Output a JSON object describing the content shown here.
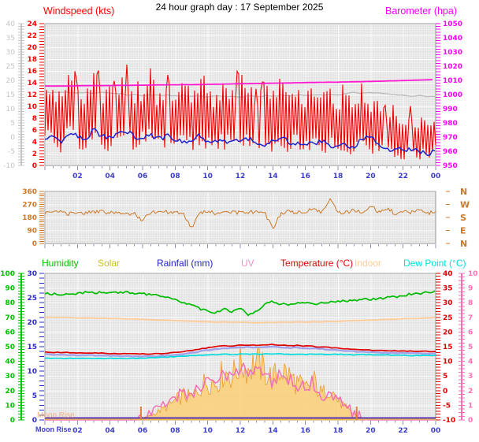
{
  "title": "24 hour graph day : 17 September 2025",
  "top_panel": {
    "left_axis_title": "Windspeed (kts)",
    "right_axis_title": "Barometer (hpa)"
  },
  "middle_panel": {
    "compass_labels": [
      "N",
      "W",
      "S",
      "E",
      "N"
    ]
  },
  "legend": {
    "items": [
      {
        "label": "Humidity",
        "color": "#00c000"
      },
      {
        "label": "Solar",
        "color": "#c8c020"
      },
      {
        "label": "Rainfall (mm)",
        "color": "#2222cc"
      },
      {
        "label": "UV",
        "color": "#ff8cc6"
      },
      {
        "label": "Temperature (°C)",
        "color": "#e00000"
      },
      {
        "label": "Indoor",
        "color": "#ffcc99"
      },
      {
        "label": "Dew Point (°C)",
        "color": "#00e0e0"
      }
    ]
  },
  "time_axis": {
    "moon_label": "Moon Rise",
    "hours": [
      2,
      4,
      6,
      8,
      10,
      12,
      14,
      16,
      18,
      20,
      22,
      24
    ],
    "labels": [
      "02",
      "04",
      "06",
      "08",
      "10",
      "12",
      "14",
      "16",
      "18",
      "20",
      "22",
      "00"
    ]
  },
  "bottom_panel": {
    "moon_overlay": "Moon Rise"
  },
  "chart_data": [
    {
      "id": "wind-barometer",
      "type": "line",
      "x_unit": "hours",
      "x_start": 0,
      "x_step": 0.5,
      "x_count": 49,
      "axes": [
        {
          "id": "windspeed",
          "slot": "left1",
          "color": "#ff0000",
          "min": 0,
          "max": 24,
          "tick": 0.5,
          "label": 2
        },
        {
          "id": "outer-gray",
          "slot": "left2",
          "color": "#c4c4c4",
          "min": -10,
          "max": 40,
          "tick": 1,
          "label": 5
        },
        {
          "id": "barometer",
          "slot": "right1",
          "color": "#ff00ff",
          "min": 950,
          "max": 1050,
          "tick": 2,
          "label": 10
        }
      ],
      "series": [
        {
          "name": "pressure_secondary",
          "axis": "barometer",
          "color": "#bcbcbc",
          "values": [
            1001.5,
            1001.5,
            1001.3,
            1001.5,
            1001.2,
            1001.4,
            1001,
            1001.2,
            1000.8,
            1001,
            999.8,
            1000,
            999.5,
            999.8,
            999.3,
            999.6,
            999,
            999.4,
            998.8,
            999.2,
            998.6,
            999,
            998.5,
            998.9,
            998.4,
            999,
            998.5,
            999.2,
            998.7,
            999.4,
            999,
            999.8,
            999.3,
            1000,
            999.6,
            1000.3,
            999.9,
            1000.6,
            1001.4,
            1000.8,
            1001.6,
            1001,
            1000.4,
            999.8,
            999.4,
            999,
            999.2,
            998.9,
            998.7
          ]
        },
        {
          "name": "wind_gust_hi",
          "axis": "windspeed",
          "color": "#f20000",
          "values": [
            13,
            15,
            12,
            16,
            14,
            12,
            17,
            13,
            15,
            12,
            16,
            13,
            14,
            17,
            12,
            15,
            13,
            16,
            12,
            17,
            14,
            12,
            16,
            13,
            17,
            14,
            12,
            15,
            13,
            16,
            12,
            14,
            13,
            15,
            12,
            14,
            11,
            13,
            12,
            14,
            10,
            12,
            9,
            11,
            8,
            9,
            8,
            9,
            8
          ]
        },
        {
          "name": "wind_gust_lo",
          "axis": "windspeed",
          "color": "#f20000",
          "values": [
            3,
            4,
            2,
            5,
            3,
            2,
            4,
            3,
            2,
            4,
            3,
            2,
            4,
            3,
            2,
            3,
            2,
            4,
            2,
            3,
            2,
            3,
            2,
            3,
            2,
            3,
            2,
            3,
            2,
            3,
            2,
            3,
            2,
            3,
            2,
            2,
            2,
            2,
            1,
            2,
            1,
            2,
            1,
            1,
            1,
            1,
            1,
            1,
            2
          ]
        },
        {
          "name": "barometer",
          "axis": "barometer",
          "color": "#ff1ad1",
          "values": [
            1006,
            1006,
            1006.1,
            1006.1,
            1006.2,
            1006.2,
            1006.3,
            1006.3,
            1006.4,
            1006.5,
            1006.5,
            1006.6,
            1006.6,
            1006.7,
            1006.8,
            1006.8,
            1006.9,
            1007,
            1007,
            1007.1,
            1007.2,
            1007.3,
            1007.4,
            1007.5,
            1007.6,
            1007.7,
            1007.8,
            1007.9,
            1008,
            1008.1,
            1008.2,
            1008.3,
            1008.4,
            1008.5,
            1008.6,
            1008.7,
            1008.8,
            1008.9,
            1009,
            1009.1,
            1009.3,
            1009.4,
            1009.6,
            1009.7,
            1009.9,
            1010,
            1010.2,
            1010.4,
            1010.5
          ]
        },
        {
          "name": "wind_avg",
          "axis": "windspeed",
          "color": "#2222cc",
          "values": [
            4.5,
            5,
            4,
            5.5,
            5,
            4.5,
            6,
            5,
            4.5,
            5.5,
            6,
            5,
            4.5,
            5,
            4.5,
            5,
            4.5,
            4,
            4.5,
            5,
            4,
            4.5,
            4,
            4.5,
            4,
            4.5,
            4,
            3.5,
            4,
            4.5,
            4,
            3.5,
            4,
            3.5,
            4,
            3.5,
            3,
            3.5,
            3,
            4.5,
            5,
            3.5,
            3,
            2.5,
            3,
            2.5,
            2.5,
            2,
            2.5
          ]
        }
      ]
    },
    {
      "id": "wind-direction",
      "type": "line",
      "x_unit": "hours",
      "x_start": 0,
      "x_step": 0.5,
      "x_count": 49,
      "axes": [
        {
          "id": "wind_direction",
          "slot": "left1",
          "color": "#cc7a29",
          "min": 0,
          "max": 360,
          "tick": 15,
          "label": 90
        }
      ],
      "compass_values": [
        360,
        270,
        180,
        90,
        0
      ],
      "series": [
        {
          "name": "wind_direction",
          "axis": "wind_direction",
          "color": "#cc7a29",
          "values": [
            215,
            210,
            220,
            205,
            215,
            210,
            215,
            220,
            210,
            215,
            205,
            210,
            160,
            215,
            210,
            220,
            215,
            210,
            105,
            215,
            220,
            210,
            215,
            225,
            210,
            215,
            220,
            215,
            95,
            210,
            220,
            215,
            210,
            250,
            215,
            300,
            220,
            215,
            230,
            210,
            260,
            220,
            240,
            210,
            230,
            215,
            225,
            210,
            220
          ]
        }
      ]
    },
    {
      "id": "climate",
      "type": "line",
      "x_unit": "hours",
      "x_start": 0,
      "x_step": 0.5,
      "x_count": 49,
      "sun_marker_hours": [
        5.9,
        19.15
      ],
      "axes": [
        {
          "id": "humidity",
          "slot": "left2",
          "color": "#00c000",
          "min": 0,
          "max": 100,
          "tick": 2,
          "label": 10
        },
        {
          "id": "rainfall",
          "slot": "left1",
          "color": "#2a2acc",
          "min": 0,
          "max": 30,
          "tick": 1,
          "label": 5
        },
        {
          "id": "temperature",
          "slot": "right1",
          "color": "#e00000",
          "min": -10,
          "max": 40,
          "tick": 1,
          "label": 5
        },
        {
          "id": "uv",
          "slot": "right2",
          "color": "#ff6eb4",
          "min": 0,
          "max": 10,
          "tick": 0.25,
          "label": 1
        }
      ],
      "series": [
        {
          "name": "solar",
          "axis": "plot_percent",
          "color": "#f9cf7a",
          "values": [
            0,
            0,
            0,
            0,
            0,
            0,
            0,
            0,
            0,
            0,
            0,
            0,
            1,
            3,
            6,
            9,
            13,
            17,
            15,
            22,
            27,
            25,
            33,
            30,
            38,
            35,
            40,
            33,
            28,
            35,
            30,
            25,
            21,
            27,
            17,
            23,
            13,
            8,
            4,
            1,
            0,
            0,
            0,
            0,
            0,
            0,
            0,
            0,
            0
          ]
        },
        {
          "name": "uv",
          "axis": "uv",
          "color": "#f271b4",
          "values": [
            0,
            0,
            0,
            0,
            0,
            0,
            0,
            0,
            0,
            0,
            0,
            0,
            0.2,
            0.5,
            0.8,
            1.2,
            1.5,
            1.9,
            1.7,
            2.3,
            2.7,
            2.5,
            3.1,
            2.9,
            3.5,
            3.3,
            3.6,
            3,
            2.6,
            3.2,
            2.8,
            2.4,
            2.1,
            2.6,
            1.7,
            2.2,
            1.3,
            0.8,
            0.3,
            0.1,
            0,
            0,
            0,
            0,
            0,
            0,
            0,
            0,
            0
          ]
        },
        {
          "name": "indoor",
          "axis": "temperature",
          "color": "#ffcc99",
          "values": [
            25,
            25,
            24.9,
            24.9,
            24.8,
            24.8,
            24.7,
            24.7,
            24.6,
            24.6,
            24.5,
            24.4,
            24.3,
            24.2,
            24.1,
            24,
            23.9,
            23.8,
            23.7,
            23.6,
            23.5,
            23.4,
            23.4,
            23.3,
            23.3,
            23.3,
            23.2,
            23.2,
            23.2,
            23.3,
            23.3,
            23.4,
            23.4,
            23.5,
            23.5,
            23.6,
            23.7,
            23.8,
            23.9,
            24,
            24.1,
            24.2,
            24.3,
            24.4,
            24.5,
            24.6,
            24.7,
            24.8,
            25
          ]
        },
        {
          "name": "humidity",
          "axis": "humidity",
          "color": "#00bb00",
          "values": [
            86,
            86,
            86,
            86.5,
            86,
            87,
            87,
            87,
            87,
            87,
            87,
            86.5,
            86,
            85.5,
            85,
            84,
            82,
            80,
            78,
            76,
            74,
            73,
            75.5,
            74,
            77,
            71,
            74,
            79,
            81,
            79,
            79,
            80,
            79.5,
            79,
            80,
            80.5,
            81,
            81,
            81.5,
            82,
            82.5,
            83,
            83.5,
            84,
            85,
            86,
            86.5,
            87,
            87.5
          ]
        },
        {
          "name": "wind_chill",
          "axis": "temperature",
          "color": "#a3a3ea",
          "values": [
            12.4,
            12.3,
            12.2,
            12.2,
            12.1,
            12.1,
            12,
            12,
            11.9,
            11.9,
            11.8,
            11.8,
            11.7,
            11.7,
            11.8,
            12,
            12.2,
            12.5,
            12.9,
            13.4,
            13.8,
            14.2,
            14.6,
            14.5,
            14.8,
            14.9,
            14.7,
            14.9,
            15.1,
            14.8,
            14.6,
            14.7,
            14.5,
            14.4,
            14.2,
            14,
            13.8,
            13.6,
            13.4,
            13.2,
            13.1,
            13,
            12.9,
            12.9,
            12.8,
            12.8,
            12.7,
            12.7,
            12.6
          ]
        },
        {
          "name": "temperature",
          "axis": "temperature",
          "color": "#e00000",
          "values": [
            13.2,
            13.1,
            13,
            13,
            12.9,
            12.9,
            12.8,
            12.8,
            12.7,
            12.7,
            12.6,
            12.6,
            12.5,
            12.5,
            12.6,
            12.8,
            13,
            13.3,
            13.7,
            14.2,
            14.6,
            15,
            15.3,
            15.2,
            15.5,
            15.6,
            15.4,
            15.6,
            15.8,
            15.5,
            15.3,
            15.4,
            15.2,
            15.1,
            14.9,
            14.7,
            14.5,
            14.3,
            14.1,
            13.9,
            13.8,
            13.7,
            13.6,
            13.6,
            13.5,
            13.5,
            13.4,
            13.4,
            13.3
          ]
        },
        {
          "name": "dew_point",
          "axis": "temperature",
          "color": "#00dcdc",
          "values": [
            11,
            11,
            11,
            11,
            11,
            11,
            11,
            11,
            11,
            11,
            11,
            11,
            11,
            11.2,
            11.3,
            11.5,
            11.6,
            11.8,
            12,
            12.1,
            12.2,
            12.3,
            12.4,
            12.3,
            12.5,
            12.4,
            12.5,
            12.5,
            12.6,
            12.5,
            12.4,
            12.5,
            12.4,
            12.5,
            12.4,
            12.3,
            12.4,
            12.3,
            12.2,
            12.3,
            12.2,
            12.1,
            12.2,
            12.1,
            12,
            12,
            12,
            11.9,
            12
          ]
        },
        {
          "name": "rainfall",
          "axis": "rainfall",
          "color": "#5b35b8",
          "values_constant": 0
        }
      ]
    }
  ]
}
